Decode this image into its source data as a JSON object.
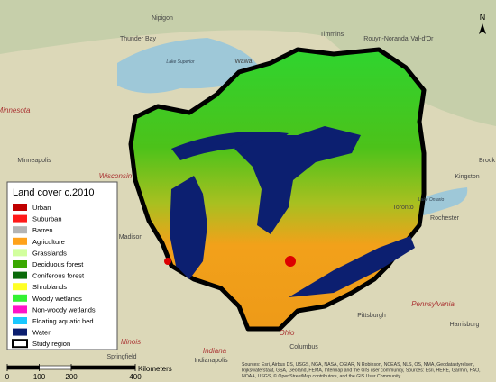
{
  "legend": {
    "title": "Land cover c.2010",
    "items": [
      {
        "label": "Urban",
        "color": "#c00000"
      },
      {
        "label": "Suburban",
        "color": "#ff1a1a"
      },
      {
        "label": "Barren",
        "color": "#b4b4b4"
      },
      {
        "label": "Agriculture",
        "color": "#ffa21a"
      },
      {
        "label": "Grasslands",
        "color": "#d2ff9e"
      },
      {
        "label": "Deciduous forest",
        "color": "#3aa800"
      },
      {
        "label": "Coniferous forest",
        "color": "#0a6b0a"
      },
      {
        "label": "Shrublands",
        "color": "#ffff26"
      },
      {
        "label": "Woody wetlands",
        "color": "#33f233"
      },
      {
        "label": "Non-woody wetlands",
        "color": "#ff14c8"
      },
      {
        "label": "Floating aquatic bed",
        "color": "#1ac8ff"
      },
      {
        "label": "Water",
        "color": "#0c1f70"
      },
      {
        "label": "Study region",
        "color": "#ffffff"
      }
    ]
  },
  "places": [
    "Nipigon",
    "Thunder Bay",
    "Timmins",
    "Rouyn-Noranda",
    "Val-d'Or",
    "Wawa",
    "Lake Superior",
    "Minnesota",
    "Minneapolis",
    "Wisconsin",
    "Madison",
    "Toronto",
    "Rochester",
    "Kingston",
    "Brock",
    "Lake Ontario",
    "Pennsylvania",
    "Harrisburg",
    "Pittsburgh",
    "Ohio",
    "Columbus",
    "Indiana",
    "Indianapolis",
    "Illinois",
    "Springfield"
  ],
  "north": "N",
  "scale": {
    "ticks": [
      0,
      100,
      200,
      400
    ],
    "unit": "Kilometers"
  },
  "attribution": [
    "Sources: Esri, Airbus DS, USGS, NGA, NASA, CGIAR, N Robinson, NCEAS, NLS, OS, NMA, Geodatastyrelsen,",
    "Rijkswaterstaat, GSA, Geoland, FEMA, Intermap and the GIS user community, Sources: Esri, HERE, Garmin, FAO,",
    "NOAA, USGS, © OpenStreetMap contributors, and the GIS User Community"
  ]
}
